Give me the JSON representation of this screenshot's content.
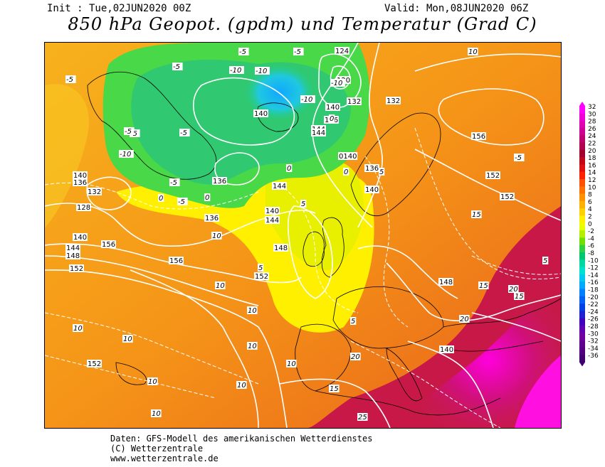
{
  "header": {
    "init": "Init : Tue,02JUN2020 00Z",
    "valid": "Valid: Mon,08JUN2020 06Z",
    "title": "850 hPa Geopot. (gpdm) und Temperatur (Grad C)"
  },
  "footer": {
    "line1": "Daten: GFS-Modell des amerikanischen Wetterdienstes",
    "line2": "(C) Wetterzentrale",
    "line3": "www.wetterzentrale.de"
  },
  "colorbar": {
    "labels": [
      "32",
      "30",
      "28",
      "26",
      "24",
      "22",
      "20",
      "18",
      "16",
      "14",
      "12",
      "10",
      "8",
      "6",
      "4",
      "2",
      "0",
      "-2",
      "-4",
      "-6",
      "-8",
      "-10",
      "-12",
      "-14",
      "-16",
      "-18",
      "-20",
      "-22",
      "-24",
      "-26",
      "-28",
      "-30",
      "-32",
      "-34",
      "-36"
    ],
    "colors": [
      "#ff00ff",
      "#f000d8",
      "#e000b0",
      "#d00090",
      "#c00070",
      "#b00050",
      "#a00030",
      "#c00818",
      "#e01010",
      "#ff2000",
      "#ff5000",
      "#ff7000",
      "#ff9000",
      "#ffb000",
      "#ffd000",
      "#ffef00",
      "#e8ff00",
      "#b0f000",
      "#70e000",
      "#30d040",
      "#00c870",
      "#00d8a0",
      "#00e0d0",
      "#00c8f0",
      "#00a8ff",
      "#0080ff",
      "#0060f8",
      "#0040e8",
      "#2020d0",
      "#4000c0",
      "#6000b0",
      "#7000a0",
      "#600090",
      "#500080",
      "#400070"
    ]
  },
  "map": {
    "geopotential_labels": [
      "140",
      "136",
      "132",
      "128",
      "140",
      "144",
      "148",
      "152",
      "156",
      "136",
      "140",
      "144",
      "132",
      "136",
      "140",
      "144",
      "120",
      "124",
      "132",
      "140",
      "136",
      "144",
      "148",
      "152",
      "156",
      "152",
      "152",
      "148",
      "156",
      "152",
      "140",
      "136",
      "144",
      "0140",
      "140"
    ],
    "temperature_labels": [
      "-5",
      "-5",
      "-5",
      "-5",
      "-5",
      "-10",
      "-10",
      "-10",
      "-10",
      "-5",
      "-5",
      "-5",
      "-5",
      "0",
      "0",
      "0",
      "0",
      "0",
      "5",
      "5",
      "5",
      "5",
      "5",
      "10",
      "10",
      "10",
      "10",
      "10",
      "10",
      "10",
      "10",
      "10",
      "10",
      "10",
      "15",
      "15",
      "15",
      "15",
      "20",
      "20",
      "20",
      "25",
      "-5",
      "-10"
    ]
  }
}
